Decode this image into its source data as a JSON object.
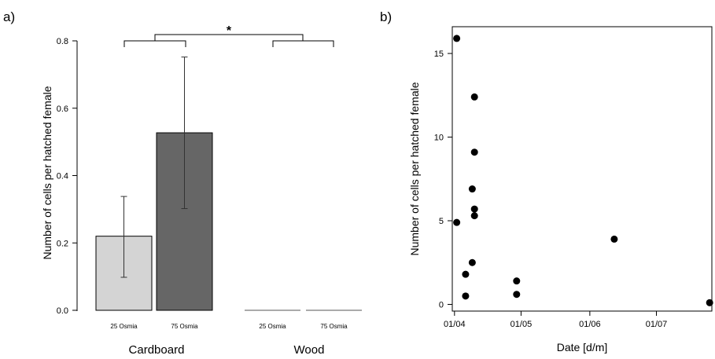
{
  "panels": [
    {
      "label": "a)"
    },
    {
      "label": "b)"
    }
  ],
  "chart_data": [
    {
      "type": "bar",
      "ylabel": "Number of cells per hatched female",
      "xlabel": "",
      "ylim": [
        0,
        0.8
      ],
      "yticks": [
        "0.0",
        "0.2",
        "0.4",
        "0.6",
        "0.8"
      ],
      "groups": [
        "Cardboard",
        "Wood"
      ],
      "categories": [
        "25 Osmia",
        "75 Osmia",
        "25 Osmia",
        "75 Osmia"
      ],
      "category_group": [
        0,
        0,
        1,
        1
      ],
      "values": [
        0.22,
        0.527,
        0,
        0
      ],
      "error_low": [
        0.098,
        0.302,
        null,
        null
      ],
      "error_high": [
        0.338,
        0.752,
        null,
        null
      ],
      "bar_colors": [
        "#d4d4d4",
        "#666666",
        "#ffffff",
        "#ffffff"
      ],
      "significance": "*"
    },
    {
      "type": "scatter",
      "ylabel": "Number of cells per hatched female",
      "xlabel": "Date [d/m]",
      "xticks": [
        "01/04",
        "01/05",
        "01/06",
        "01/07"
      ],
      "yticks": [
        "0",
        "5",
        "10",
        "15"
      ],
      "ylim": [
        -0.4,
        16.6
      ],
      "xlim": [
        "2000-03-31",
        "2000-07-26"
      ],
      "points": [
        {
          "x": "2000-04-02",
          "y": 4.9
        },
        {
          "x": "2000-04-02",
          "y": 15.9
        },
        {
          "x": "2000-04-06",
          "y": 1.8
        },
        {
          "x": "2000-04-06",
          "y": 0.5
        },
        {
          "x": "2000-04-09",
          "y": 2.5
        },
        {
          "x": "2000-04-09",
          "y": 6.9
        },
        {
          "x": "2000-04-10",
          "y": 12.4
        },
        {
          "x": "2000-04-10",
          "y": 9.1
        },
        {
          "x": "2000-04-10",
          "y": 5.7
        },
        {
          "x": "2000-04-10",
          "y": 5.3
        },
        {
          "x": "2000-04-29",
          "y": 1.4
        },
        {
          "x": "2000-04-29",
          "y": 0.6
        },
        {
          "x": "2000-06-12",
          "y": 3.9
        },
        {
          "x": "2000-07-25",
          "y": 0.1
        }
      ]
    }
  ]
}
